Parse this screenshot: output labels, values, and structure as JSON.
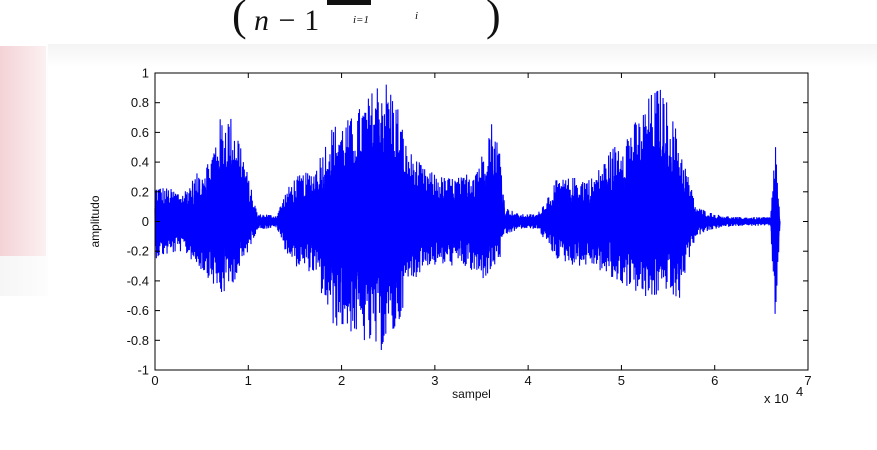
{
  "chart_data": {
    "type": "line",
    "title": "",
    "xlabel": "sampel",
    "ylabel": "amplitudo",
    "x_multiplier": "x 10",
    "x_multiplier_exp": "4",
    "xlim": [
      0,
      7
    ],
    "ylim": [
      -1,
      1
    ],
    "x_ticks": [
      0,
      1,
      2,
      3,
      4,
      5,
      6,
      7
    ],
    "y_ticks": [
      1,
      0.8,
      0.6,
      0.4,
      0.2,
      0,
      -0.2,
      -0.4,
      -0.6,
      -0.8,
      -1
    ],
    "y_tick_labels": [
      "1",
      "0.8",
      "0.6",
      "0.4",
      "0.2",
      "0",
      "-0.2",
      "-0.4",
      "-0.6",
      "-0.8",
      "-1"
    ],
    "grid": false,
    "line_color": "#0000ff",
    "series": [
      {
        "envelope_x": [
          0.0,
          0.3,
          0.6,
          0.7,
          0.8,
          0.9,
          1.0,
          1.1,
          1.2,
          1.3,
          1.4,
          1.5,
          1.7,
          1.9,
          2.1,
          2.3,
          2.4,
          2.5,
          2.6,
          2.7,
          2.9,
          3.1,
          3.3,
          3.5,
          3.6,
          3.7,
          3.75,
          3.9,
          4.1,
          4.3,
          4.5,
          4.7,
          4.9,
          5.1,
          5.2,
          5.3,
          5.4,
          5.5,
          5.6,
          5.7,
          5.8,
          6.0,
          6.2,
          6.4,
          6.6,
          6.65,
          6.7
        ],
        "envelope_upper": [
          0.25,
          0.2,
          0.45,
          0.7,
          0.73,
          0.6,
          0.3,
          0.05,
          0.05,
          0.04,
          0.2,
          0.3,
          0.35,
          0.65,
          0.7,
          0.85,
          0.98,
          0.95,
          0.8,
          0.5,
          0.35,
          0.3,
          0.3,
          0.45,
          0.7,
          0.5,
          0.1,
          0.05,
          0.05,
          0.28,
          0.3,
          0.3,
          0.5,
          0.65,
          0.7,
          0.85,
          0.92,
          0.8,
          0.6,
          0.35,
          0.1,
          0.05,
          0.03,
          0.03,
          0.03,
          0.58,
          0.0
        ],
        "envelope_lower": [
          -0.25,
          -0.2,
          -0.4,
          -0.52,
          -0.45,
          -0.35,
          -0.2,
          -0.05,
          -0.05,
          -0.04,
          -0.2,
          -0.3,
          -0.35,
          -0.7,
          -0.75,
          -0.85,
          -0.9,
          -0.8,
          -0.75,
          -0.45,
          -0.3,
          -0.3,
          -0.3,
          -0.4,
          -0.35,
          -0.25,
          -0.1,
          -0.05,
          -0.05,
          -0.25,
          -0.3,
          -0.3,
          -0.4,
          -0.45,
          -0.5,
          -0.55,
          -0.5,
          -0.45,
          -0.6,
          -0.3,
          -0.1,
          -0.05,
          -0.03,
          -0.03,
          -0.03,
          -0.75,
          0.0
        ]
      }
    ]
  }
}
